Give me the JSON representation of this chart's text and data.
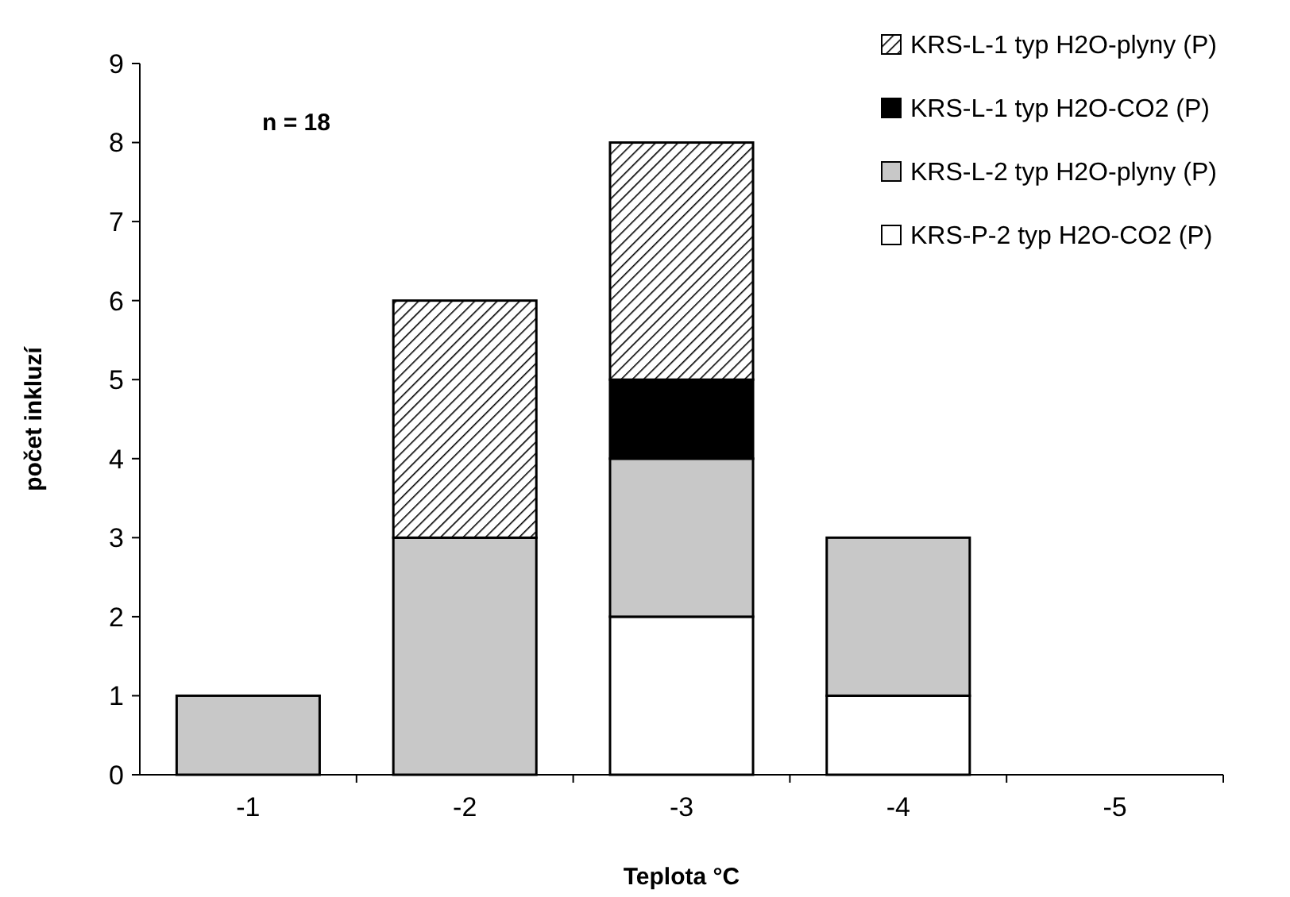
{
  "chart_data": {
    "type": "bar",
    "stacked": true,
    "xlabel": "Teplota °C",
    "ylabel": "počet inkluzí",
    "annotations": [
      "n = 18"
    ],
    "categories": [
      "-1",
      "-2",
      "-3",
      "-4",
      "-5"
    ],
    "series": [
      {
        "name": "KRS-P-2 typ H2O-CO2 (P)",
        "color": "#ffffff",
        "values": [
          0,
          0,
          2,
          1,
          0
        ]
      },
      {
        "name": "KRS-L-2 typ H2O-plyny (P)",
        "color": "#c8c8c8",
        "values": [
          1,
          3,
          2,
          2,
          0
        ]
      },
      {
        "name": "KRS-L-1 typ H2O-CO2 (P)",
        "color": "#000000",
        "values": [
          0,
          0,
          1,
          0,
          0
        ]
      },
      {
        "name": "KRS-L-1 typ H2O-plyny (P)",
        "color": "#000000",
        "values": [
          0,
          3,
          3,
          0,
          0
        ]
      }
    ],
    "ylim": [
      0,
      9
    ],
    "yticks": [
      0,
      1,
      2,
      3,
      4,
      5,
      6,
      7,
      8,
      9
    ],
    "grid": false,
    "legend": "top right"
  }
}
